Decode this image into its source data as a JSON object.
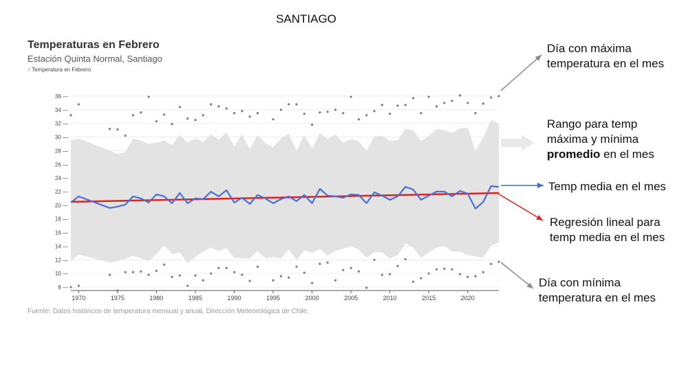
{
  "page_title": "SANTIAGO",
  "chart_data": {
    "type": "line",
    "title": "Temperaturas en Febrero",
    "subtitle": "Estación Quinta Normal, Santiago",
    "ylabel": "↑ Temperatura en Febrero",
    "source": "Fuente: Datos históricos de temperatura mensual y anual, Dirección Meteorológica de Chile,",
    "xlim": [
      1969,
      2024
    ],
    "ylim": [
      7.5,
      37
    ],
    "x_ticks": [
      1970,
      1975,
      1980,
      1985,
      1990,
      1995,
      2000,
      2005,
      2010,
      2015,
      2020
    ],
    "y_ticks": [
      8,
      10,
      12,
      14,
      16,
      18,
      20,
      22,
      24,
      26,
      28,
      30,
      32,
      34,
      36
    ],
    "grid": true,
    "colors": {
      "mean": "#4a6fd4",
      "trend": "#e0211c",
      "band": "#e3e3e3",
      "points": "#7a7a7a",
      "arrow_gray": "#8a8a8a",
      "arrow_blue": "#3a6fd8",
      "arrow_red": "#e0211c"
    },
    "series": [
      {
        "name": "Temp media en el mes",
        "x": [
          1969,
          1970,
          1974,
          1975,
          1976,
          1977,
          1978,
          1979,
          1980,
          1981,
          1982,
          1983,
          1984,
          1985,
          1986,
          1987,
          1988,
          1989,
          1990,
          1991,
          1992,
          1993,
          1994,
          1995,
          1996,
          1997,
          1998,
          1999,
          2000,
          2001,
          2002,
          2003,
          2004,
          2005,
          2006,
          2007,
          2008,
          2009,
          2010,
          2011,
          2012,
          2013,
          2014,
          2015,
          2016,
          2017,
          2018,
          2019,
          2020,
          2021,
          2022,
          2023,
          2024
        ],
        "values": [
          20.4,
          21.3,
          19.6,
          19.8,
          20.1,
          21.3,
          21.0,
          20.4,
          21.6,
          21.3,
          20.3,
          21.8,
          20.3,
          21.0,
          20.9,
          22.0,
          21.3,
          22.2,
          20.4,
          21.1,
          20.2,
          21.5,
          21.0,
          20.3,
          20.9,
          21.3,
          20.6,
          21.5,
          20.3,
          22.4,
          21.4,
          21.3,
          21.1,
          21.6,
          21.5,
          20.3,
          21.9,
          21.4,
          20.8,
          21.3,
          22.7,
          22.3,
          20.8,
          21.4,
          22.0,
          22.0,
          21.3,
          22.1,
          21.7,
          19.5,
          20.5,
          22.8,
          22.7
        ]
      },
      {
        "name": "Regresión lineal para temp media en el mes",
        "x": [
          1969,
          2024
        ],
        "values": [
          20.5,
          21.8
        ]
      },
      {
        "name": "Rango para temp máxima y mínima promedio en el mes",
        "x": [
          1969,
          1970,
          1974,
          1975,
          1976,
          1977,
          1978,
          1979,
          1980,
          1981,
          1982,
          1983,
          1984,
          1985,
          1986,
          1987,
          1988,
          1989,
          1990,
          1991,
          1992,
          1993,
          1994,
          1995,
          1996,
          1997,
          1998,
          1999,
          2000,
          2001,
          2002,
          2003,
          2004,
          2005,
          2006,
          2007,
          2008,
          2009,
          2010,
          2011,
          2012,
          2013,
          2014,
          2015,
          2016,
          2017,
          2018,
          2019,
          2020,
          2021,
          2022,
          2023,
          2024
        ],
        "upper": [
          29.5,
          29.8,
          28.0,
          27.5,
          27.8,
          29.8,
          29.5,
          29.0,
          29.2,
          29.5,
          28.8,
          30.3,
          29.2,
          29.8,
          29.3,
          30.4,
          29.6,
          30.7,
          28.6,
          30.4,
          28.2,
          30.3,
          29.1,
          28.5,
          29.8,
          30.5,
          28.0,
          30.3,
          28.3,
          30.6,
          29.7,
          30.4,
          29.2,
          29.7,
          29.4,
          28.0,
          30.1,
          30.2,
          29.4,
          29.6,
          31.2,
          31.0,
          29.4,
          30.1,
          31.2,
          31.0,
          30.6,
          31.3,
          31.4,
          28.0,
          29.9,
          32.5,
          32.0
        ],
        "lower": [
          11.8,
          12.8,
          11.6,
          11.8,
          12.1,
          12.6,
          12.2,
          11.8,
          12.8,
          14.2,
          12.8,
          13.1,
          11.5,
          12.4,
          13.2,
          13.8,
          13.3,
          13.7,
          12.3,
          12.2,
          12.2,
          13.3,
          12.2,
          12.4,
          12.2,
          13.5,
          12.0,
          13.4,
          13.0,
          13.6,
          12.6,
          13.3,
          13.6,
          14.0,
          13.5,
          12.3,
          13.1,
          13.1,
          12.2,
          12.7,
          14.4,
          13.8,
          12.3,
          13.1,
          13.8,
          14.0,
          13.2,
          13.2,
          12.7,
          12.5,
          12.3,
          14.1,
          14.5
        ]
      },
      {
        "name": "Día con máxima temperatura en el mes",
        "x": [
          1969,
          1970,
          1974,
          1975,
          1976,
          1977,
          1978,
          1979,
          1980,
          1981,
          1982,
          1983,
          1984,
          1985,
          1986,
          1987,
          1988,
          1989,
          1990,
          1991,
          1992,
          1993,
          1995,
          1996,
          1997,
          1998,
          1999,
          2000,
          2001,
          2002,
          2003,
          2004,
          2005,
          2006,
          2007,
          2008,
          2009,
          2010,
          2011,
          2012,
          2013,
          2014,
          2015,
          2016,
          2017,
          2018,
          2019,
          2020,
          2021,
          2022,
          2023,
          2024
        ],
        "values": [
          33.2,
          34.8,
          31.2,
          31.1,
          30.2,
          33.2,
          33.6,
          35.9,
          32.3,
          33.3,
          31.9,
          34.4,
          32.7,
          32.5,
          33.2,
          34.8,
          34.5,
          34.2,
          33.5,
          33.8,
          33.0,
          33.5,
          32.6,
          34.0,
          34.8,
          34.8,
          33.4,
          31.8,
          33.6,
          33.7,
          34.0,
          33.5,
          35.9,
          32.6,
          33.2,
          33.8,
          34.7,
          33.4,
          34.6,
          34.7,
          35.7,
          33.5,
          35.9,
          34.5,
          35.0,
          35.3,
          36.1,
          35.0,
          33.5,
          34.9,
          35.8,
          36.0
        ]
      },
      {
        "name": "Día con mínima temperatura en el mes",
        "x": [
          1969,
          1970,
          1974,
          1975,
          1976,
          1977,
          1978,
          1979,
          1980,
          1981,
          1982,
          1983,
          1984,
          1985,
          1986,
          1987,
          1988,
          1989,
          1990,
          1991,
          1992,
          1993,
          1995,
          1996,
          1997,
          1998,
          1999,
          2000,
          2001,
          2002,
          2003,
          2004,
          2005,
          2006,
          2007,
          2008,
          2009,
          2010,
          2011,
          2012,
          2013,
          2014,
          2015,
          2016,
          2017,
          2018,
          2019,
          2020,
          2021,
          2022,
          2023,
          2024
        ],
        "values": [
          8.0,
          8.2,
          9.8,
          7.5,
          10.2,
          10.2,
          10.3,
          9.8,
          10.4,
          11.3,
          9.5,
          9.7,
          8.2,
          9.7,
          9.0,
          10.0,
          10.8,
          10.8,
          10.2,
          9.8,
          8.9,
          11.0,
          9.0,
          9.6,
          9.4,
          11.0,
          10.1,
          8.6,
          11.4,
          11.6,
          9.0,
          10.5,
          10.8,
          10.3,
          7.9,
          12.0,
          9.8,
          9.9,
          11.1,
          12.1,
          8.8,
          9.3,
          10.0,
          10.6,
          10.7,
          10.6,
          9.9,
          9.5,
          9.6,
          10.2,
          11.4,
          11.7
        ]
      }
    ]
  },
  "annotations": {
    "max_day_line1": "Día con máxima",
    "max_day_line2": "temperatura en el mes",
    "range_line1": "Rango para temp",
    "range_line2": "máxima y mínima",
    "range_bold": "promedio",
    "range_rest": " en el mes",
    "mean": "Temp media en el mes",
    "regression_line1": "Regresión lineal para",
    "regression_line2": "temp media en el mes",
    "min_day_line1": "Día con mínima",
    "min_day_line2": "temperatura en el mes"
  }
}
